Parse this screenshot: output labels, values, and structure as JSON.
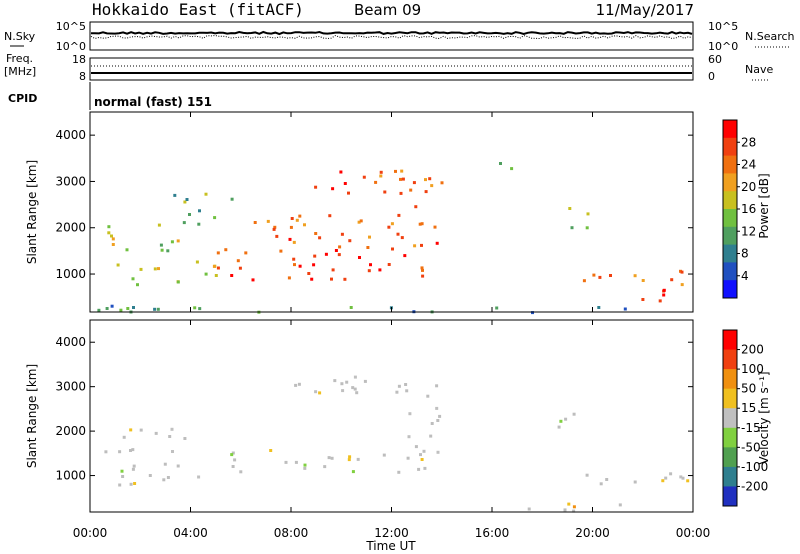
{
  "header": {
    "title": "Hokkaido East (fitACF)",
    "beam": "Beam 09",
    "date": "11/May/2017"
  },
  "panels": {
    "nsky": {
      "label_left": "N.Sky",
      "label_right": "N.Search",
      "ticks_left": [
        "10^5",
        "10^0"
      ],
      "ticks_right": [
        "10^5",
        "10^0"
      ]
    },
    "freq": {
      "label_left_1": "Freq.",
      "label_left_2": "[MHz]",
      "label_right": "Nave",
      "ticks_left": [
        "18",
        "8"
      ],
      "ticks_right": [
        "60",
        "0"
      ]
    },
    "cpid": {
      "label": "CPID",
      "value": "normal (fast) 151"
    }
  },
  "chart_data": [
    {
      "type": "heatmap",
      "name": "power",
      "ylabel": "Slant Range [km]",
      "xlabel": "",
      "xlim": [
        0,
        24
      ],
      "ylim": [
        180,
        4500
      ],
      "yticks": [
        "1000",
        "2000",
        "3000",
        "4000"
      ],
      "colorbar": {
        "label": "Power [dB]",
        "ticks": [
          "4",
          "8",
          "12",
          "16",
          "20",
          "24",
          "28"
        ],
        "colors": [
          "#1010ff",
          "#2050c0",
          "#2f7f8f",
          "#4f9f5f",
          "#70c040",
          "#c8c020",
          "#f0a020",
          "#f07010",
          "#f04010",
          "#ff0000"
        ]
      },
      "regions": [
        {
          "t0": 0.3,
          "t1": 5.0,
          "r0": 800,
          "r1": 1300,
          "level": 0.55
        },
        {
          "t0": 0.5,
          "t1": 4.0,
          "r0": 1500,
          "r1": 2100,
          "level": 0.5
        },
        {
          "t0": 3.2,
          "t1": 5.8,
          "r0": 2100,
          "r1": 2800,
          "level": 0.4
        },
        {
          "t0": 5.0,
          "t1": 13.5,
          "r0": 900,
          "r1": 1600,
          "level": 0.9
        },
        {
          "t0": 6.0,
          "t1": 13.0,
          "r0": 1600,
          "r1": 2300,
          "level": 0.8
        },
        {
          "t0": 8.0,
          "t1": 12.5,
          "r0": 2700,
          "r1": 3300,
          "level": 0.85
        },
        {
          "t0": 12.5,
          "t1": 14.0,
          "r0": 1500,
          "r1": 3200,
          "level": 0.85
        },
        {
          "t0": 16.0,
          "t1": 17.0,
          "r0": 3200,
          "r1": 3500,
          "level": 0.35
        },
        {
          "t0": 18.5,
          "t1": 19.8,
          "r0": 1900,
          "r1": 2500,
          "level": 0.45
        },
        {
          "t0": 19.5,
          "t1": 24.0,
          "r0": 800,
          "r1": 1200,
          "level": 0.8
        },
        {
          "t0": 21.0,
          "t1": 24.0,
          "r0": 400,
          "r1": 700,
          "level": 0.95
        },
        {
          "t0": 0.0,
          "t1": 24.0,
          "r0": 200,
          "r1": 350,
          "level": 0.3
        }
      ]
    },
    {
      "type": "heatmap",
      "name": "velocity",
      "ylabel": "Slant Range [km]",
      "xlabel": "Time UT",
      "xlim": [
        0,
        24
      ],
      "ylim": [
        180,
        4500
      ],
      "xticks": [
        "00:00",
        "04:00",
        "08:00",
        "12:00",
        "16:00",
        "20:00",
        "00:00"
      ],
      "yticks": [
        "1000",
        "2000",
        "3000",
        "4000"
      ],
      "colorbar": {
        "label": "Velocity [m s⁻¹]",
        "ticks": [
          "200",
          "100",
          "50",
          "15",
          "-15",
          "-50",
          "-100",
          "-200"
        ],
        "colors": [
          "#2030c0",
          "#2f7f8f",
          "#50a050",
          "#80d040",
          "#c0c0c0",
          "#f0c020",
          "#f09010",
          "#f04010",
          "#ff0000"
        ]
      },
      "ground_scatter_color": "#bdbdbd",
      "regions": [
        {
          "t0": 0.3,
          "t1": 5.0,
          "r0": 800,
          "r1": 1300,
          "level": 0.5
        },
        {
          "t0": 0.5,
          "t1": 4.0,
          "r0": 1500,
          "r1": 2100,
          "level": 0.5
        },
        {
          "t0": 5.0,
          "t1": 13.5,
          "r0": 1100,
          "r1": 1600,
          "level": 0.5
        },
        {
          "t0": 8.0,
          "t1": 12.5,
          "r0": 2700,
          "r1": 3300,
          "level": 0.5
        },
        {
          "t0": 12.5,
          "t1": 14.0,
          "r0": 1500,
          "r1": 3200,
          "level": 0.5
        },
        {
          "t0": 18.5,
          "t1": 19.8,
          "r0": 1900,
          "r1": 2500,
          "level": 0.35
        },
        {
          "t0": 19.5,
          "t1": 24.0,
          "r0": 800,
          "r1": 1200,
          "level": 0.5
        },
        {
          "t0": 17.0,
          "t1": 22.0,
          "r0": 200,
          "r1": 400,
          "level": 0.7
        }
      ]
    }
  ]
}
